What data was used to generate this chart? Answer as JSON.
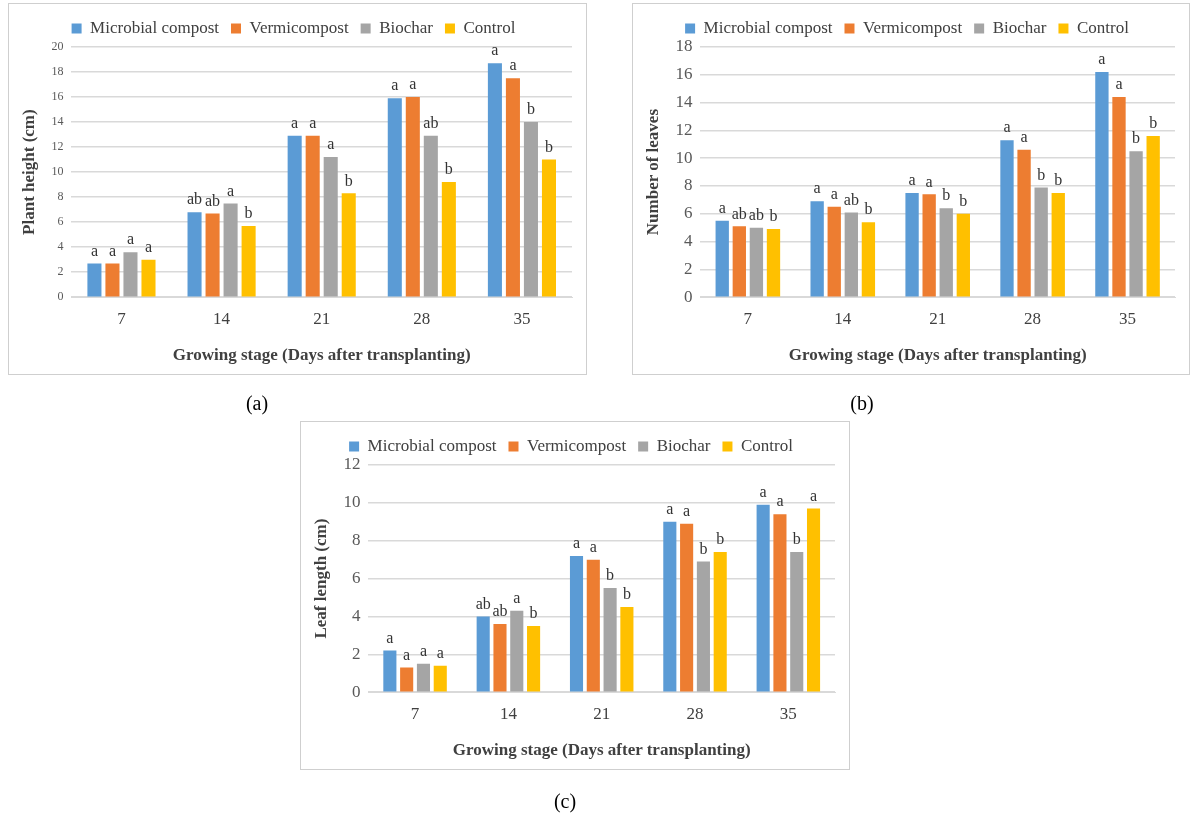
{
  "chart_data": [
    {
      "type": "bar",
      "xlabel": "Growing stage (Days after transplanting)",
      "ylabel": "Plant height (cm)",
      "annotations": [
        "(a)"
      ],
      "categories": [
        "7",
        "14",
        "21",
        "28",
        "35"
      ],
      "series": [
        {
          "name": "Microbial compost",
          "color": "#5b9bd5",
          "values": [
            2.7,
            6.8,
            12.9,
            15.9,
            18.7
          ],
          "value_labels": [
            "a",
            "ab",
            "a",
            "a",
            "a"
          ]
        },
        {
          "name": "Vermicompost",
          "color": "#ed7d31",
          "values": [
            2.7,
            6.7,
            12.9,
            16.0,
            17.5
          ],
          "value_labels": [
            "a",
            "ab",
            "a",
            "a",
            "a"
          ]
        },
        {
          "name": "Biochar",
          "color": "#a5a5a5",
          "values": [
            3.6,
            7.5,
            11.2,
            12.9,
            14.0
          ],
          "value_labels": [
            "a",
            "a",
            "a",
            "ab",
            "b"
          ]
        },
        {
          "name": "Control",
          "color": "#ffc000",
          "values": [
            3.0,
            5.7,
            8.3,
            9.2,
            11.0
          ],
          "value_labels": [
            "a",
            "b",
            "b",
            "b",
            "b"
          ]
        }
      ],
      "ylim": [
        0,
        20
      ],
      "yticks": [
        0,
        2,
        4,
        6,
        8,
        10,
        12,
        14,
        16,
        18,
        20
      ],
      "grid": "y",
      "legend": "top"
    },
    {
      "type": "bar",
      "xlabel": "Growing stage (Days after transplanting)",
      "ylabel": "Number of leaves",
      "annotations": [
        "(b)"
      ],
      "categories": [
        "7",
        "14",
        "21",
        "28",
        "35"
      ],
      "series": [
        {
          "name": "Microbial compost",
          "color": "#5b9bd5",
          "values": [
            5.5,
            6.9,
            7.5,
            11.3,
            16.2
          ],
          "value_labels": [
            "a",
            "a",
            "a",
            "a",
            "a"
          ]
        },
        {
          "name": "Vermicompost",
          "color": "#ed7d31",
          "values": [
            5.1,
            6.5,
            7.4,
            10.6,
            14.4
          ],
          "value_labels": [
            "ab",
            "a",
            "a",
            "a",
            "a"
          ]
        },
        {
          "name": "Biochar",
          "color": "#a5a5a5",
          "values": [
            5.0,
            6.1,
            6.4,
            7.9,
            10.5
          ],
          "value_labels": [
            "ab",
            "ab",
            "b",
            "b",
            "b"
          ]
        },
        {
          "name": "Control",
          "color": "#ffc000",
          "values": [
            4.9,
            5.4,
            6.0,
            7.5,
            11.6
          ],
          "value_labels": [
            "b",
            "b",
            "b",
            "b",
            "b"
          ]
        }
      ],
      "ylim": [
        0,
        18
      ],
      "yticks": [
        0,
        2,
        4,
        6,
        8,
        10,
        12,
        14,
        16,
        18
      ],
      "grid": "y",
      "legend": "top"
    },
    {
      "type": "bar",
      "xlabel": "Growing stage (Days after transplanting)",
      "ylabel": "Leaf length (cm)",
      "annotations": [
        "(c)"
      ],
      "categories": [
        "7",
        "14",
        "21",
        "28",
        "35"
      ],
      "series": [
        {
          "name": "Microbial compost",
          "color": "#5b9bd5",
          "values": [
            2.2,
            4.0,
            7.2,
            9.0,
            9.9
          ],
          "value_labels": [
            "a",
            "ab",
            "a",
            "a",
            "a"
          ]
        },
        {
          "name": "Vermicompost",
          "color": "#ed7d31",
          "values": [
            1.3,
            3.6,
            7.0,
            8.9,
            9.4
          ],
          "value_labels": [
            "a",
            "ab",
            "a",
            "a",
            "a"
          ]
        },
        {
          "name": "Biochar",
          "color": "#a5a5a5",
          "values": [
            1.5,
            4.3,
            5.5,
            6.9,
            7.4
          ],
          "value_labels": [
            "a",
            "a",
            "b",
            "b",
            "b"
          ]
        },
        {
          "name": "Control",
          "color": "#ffc000",
          "values": [
            1.4,
            3.5,
            4.5,
            7.4,
            9.7
          ],
          "value_labels": [
            "a",
            "b",
            "b",
            "b",
            "a"
          ]
        }
      ],
      "ylim": [
        0,
        12
      ],
      "yticks": [
        0,
        2,
        4,
        6,
        8,
        10,
        12
      ],
      "grid": "y",
      "legend": "top"
    }
  ]
}
